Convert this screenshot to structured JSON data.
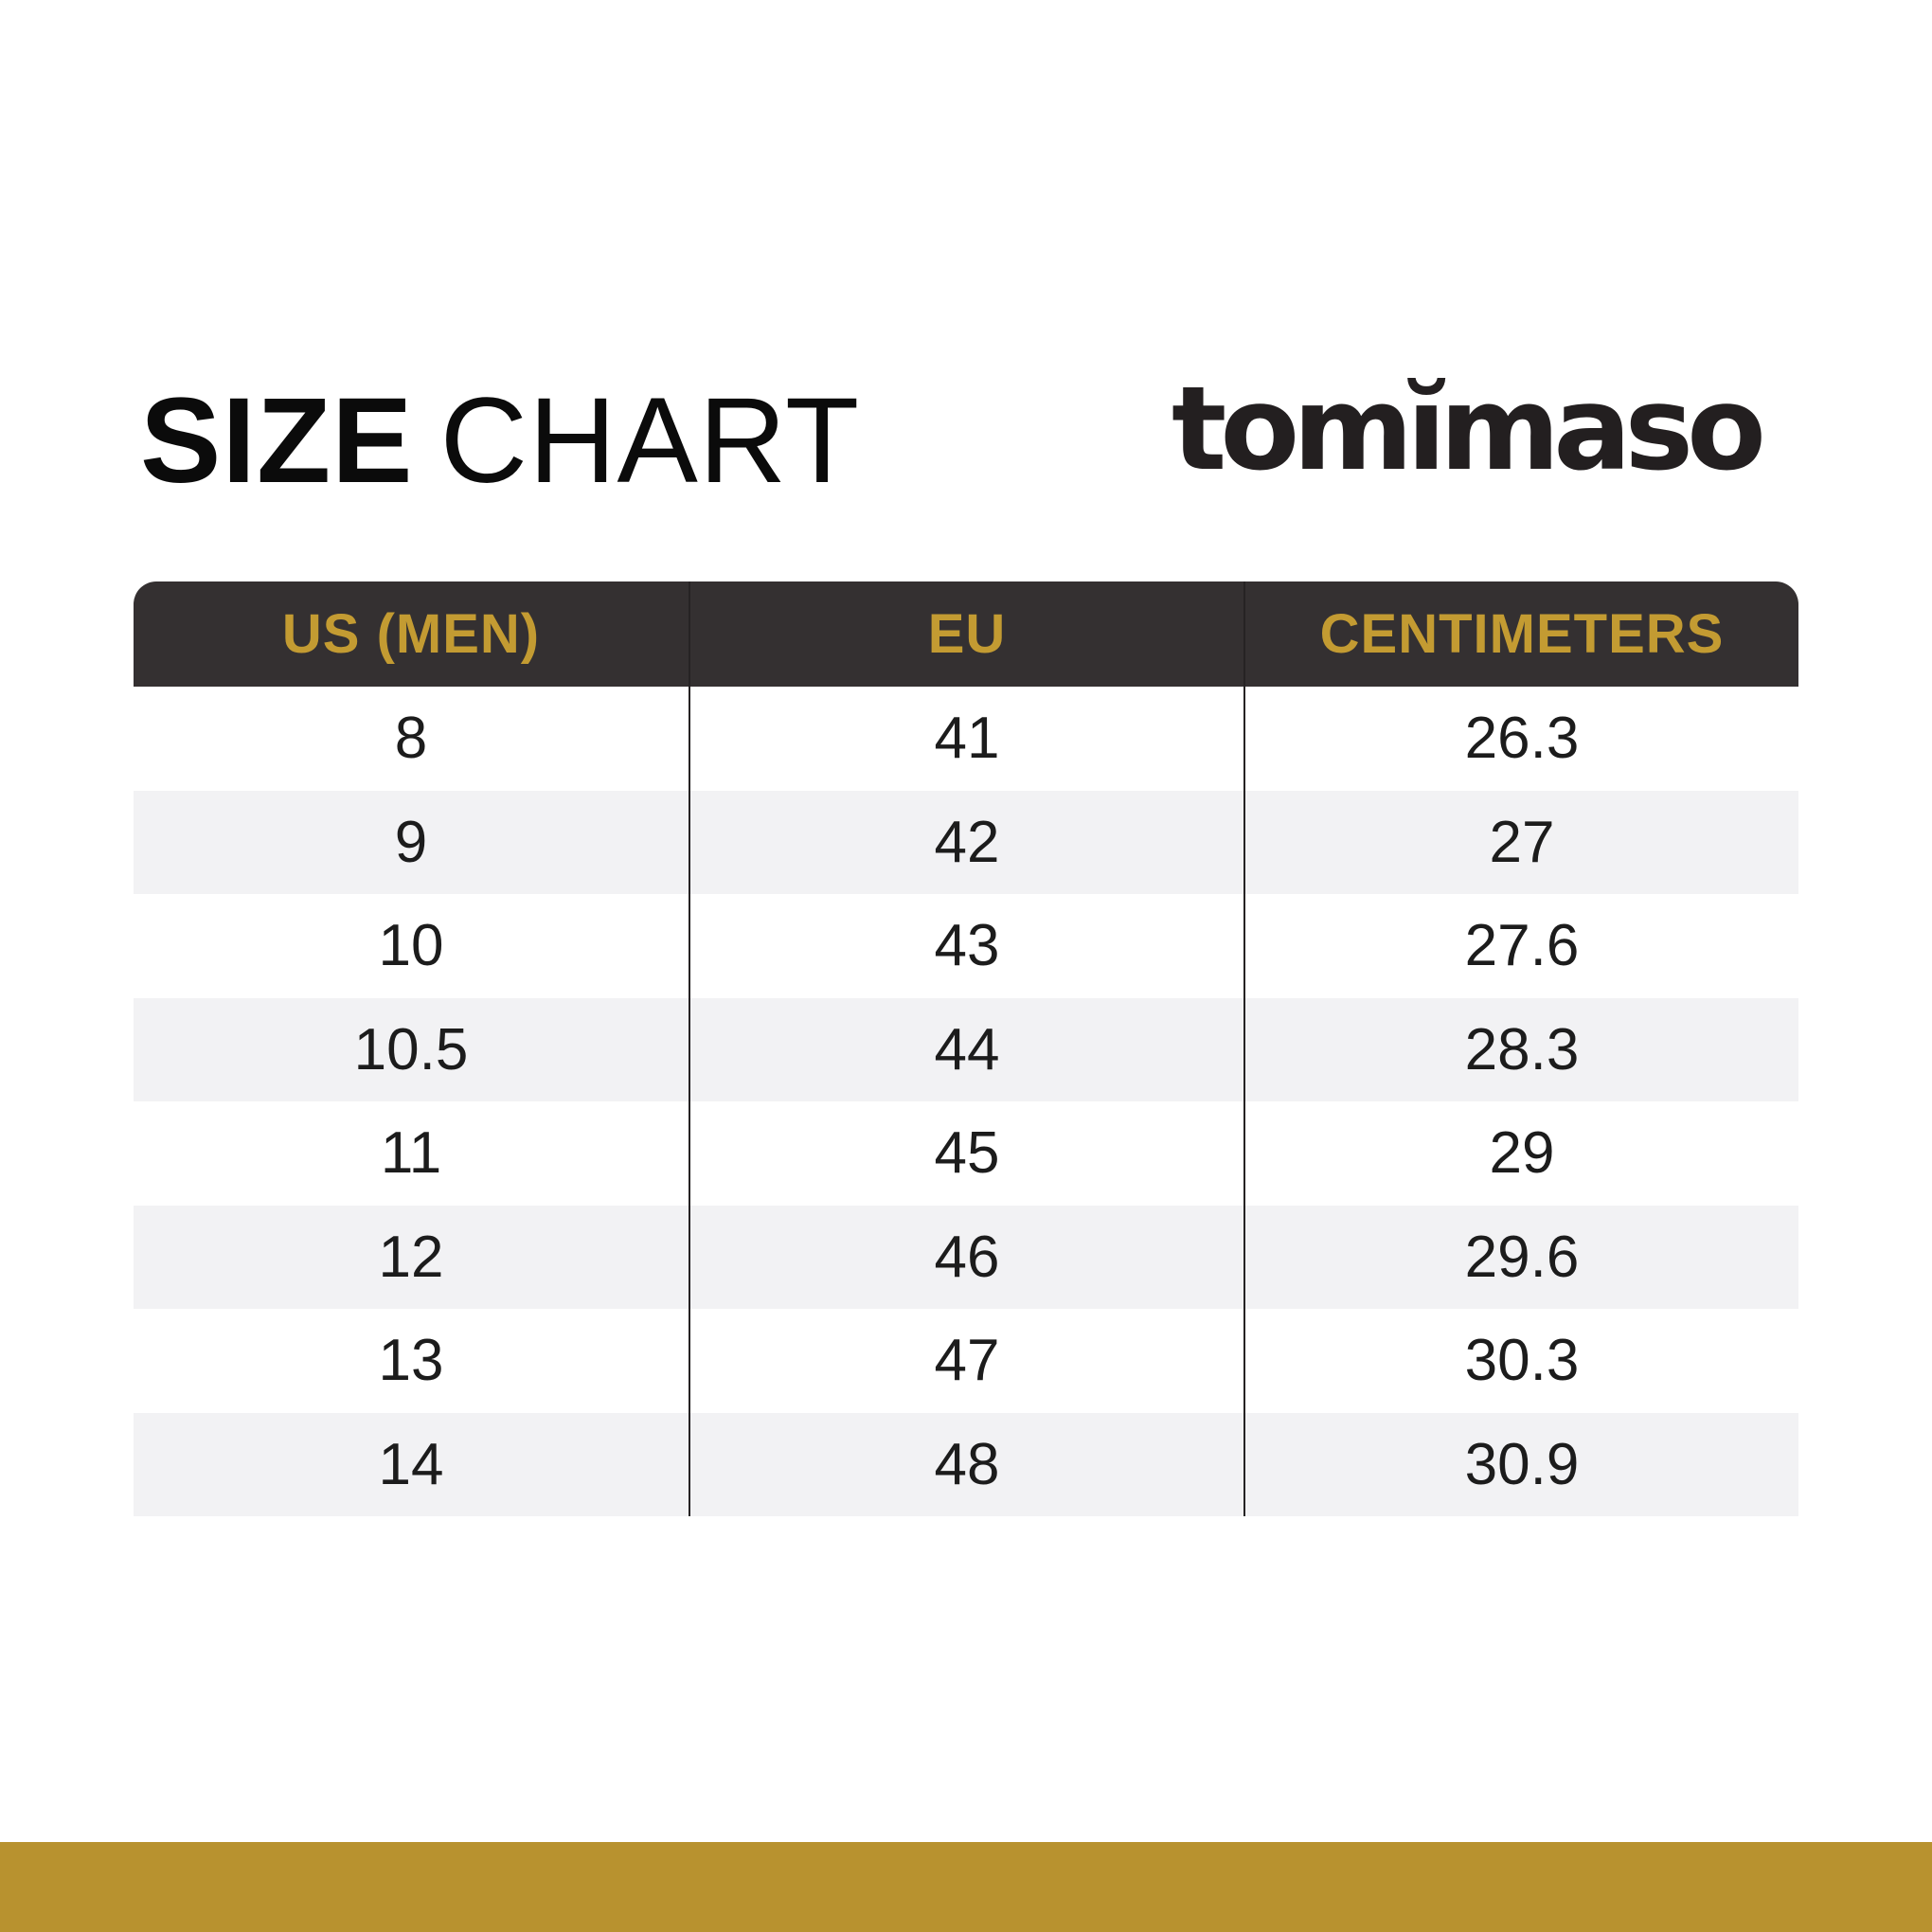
{
  "title": {
    "bold": "SIZE",
    "regular": "CHART"
  },
  "brand": {
    "logo": "tomĭmaso"
  },
  "size_table": {
    "headers": [
      "US (MEN)",
      "EU",
      "CENTIMETERS"
    ],
    "rows": [
      [
        "8",
        "41",
        "26.3"
      ],
      [
        "9",
        "42",
        "27"
      ],
      [
        "10",
        "43",
        "27.6"
      ],
      [
        "10.5",
        "44",
        "28.3"
      ],
      [
        "11",
        "45",
        "29"
      ],
      [
        "12",
        "46",
        "29.6"
      ],
      [
        "13",
        "47",
        "30.3"
      ],
      [
        "14",
        "48",
        "30.9"
      ]
    ]
  },
  "chart_data": {
    "type": "table",
    "title": "SIZE CHART",
    "columns": [
      "US (MEN)",
      "EU",
      "CENTIMETERS"
    ],
    "rows": [
      [
        8,
        41,
        26.3
      ],
      [
        9,
        42,
        27
      ],
      [
        10,
        43,
        27.6
      ],
      [
        10.5,
        44,
        28.3
      ],
      [
        11,
        45,
        29
      ],
      [
        12,
        46,
        29.6
      ],
      [
        13,
        47,
        30.3
      ],
      [
        14,
        48,
        30.9
      ]
    ],
    "layout": {
      "header_position": "top",
      "zebra_striping": true,
      "grid": "vertical-dividers-only"
    }
  },
  "colors": {
    "gold_bar": "#b8922f",
    "gold_header_text": "#c39b32",
    "header_bg": "#343031",
    "alt_row_bg": "#f2f2f4",
    "body_text": "#1c1c1c"
  }
}
